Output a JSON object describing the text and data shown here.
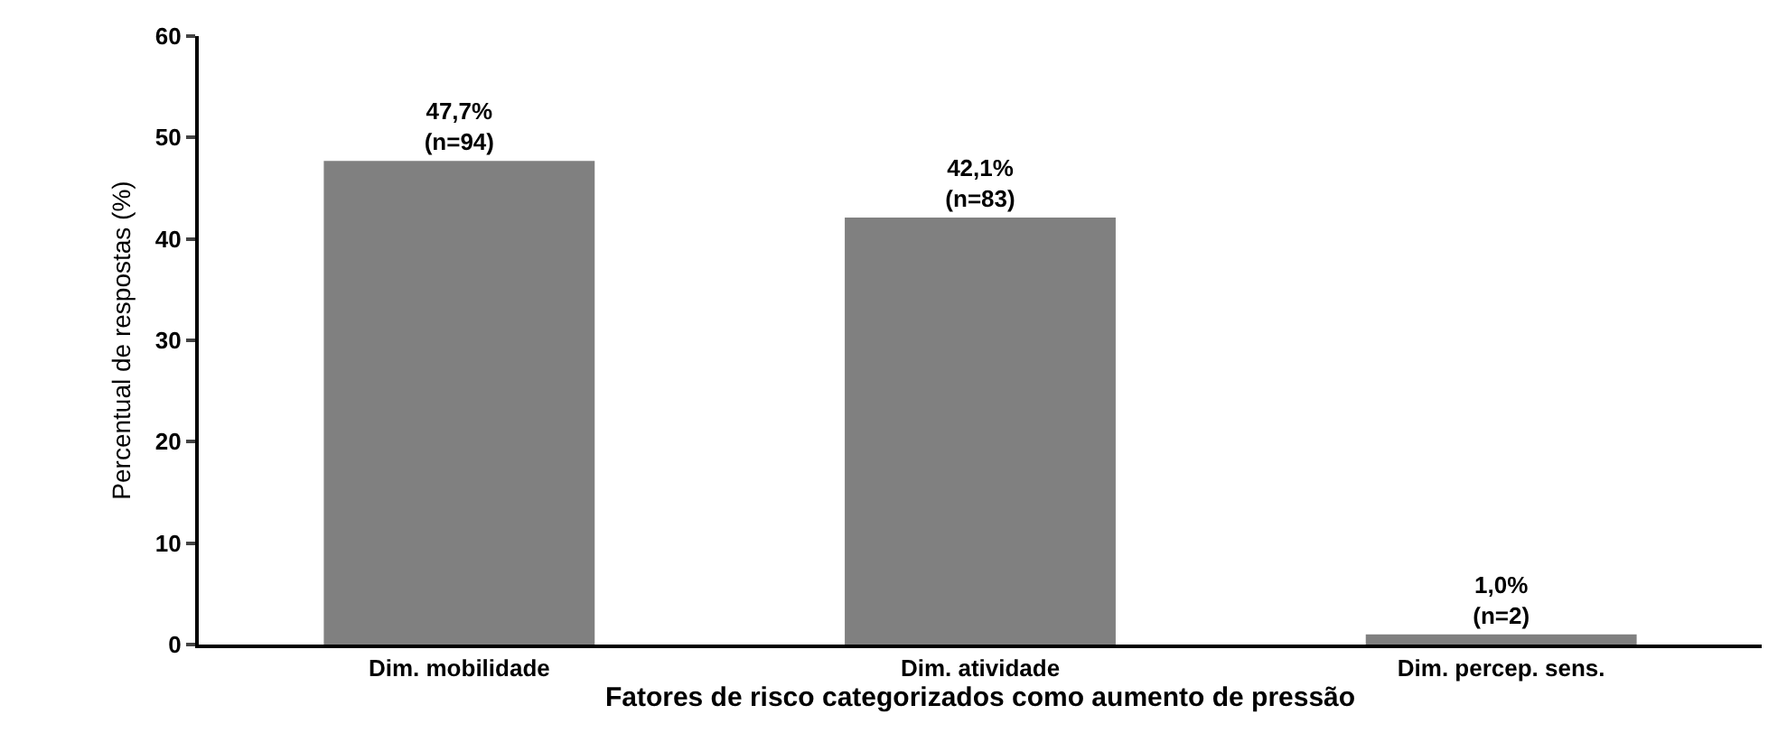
{
  "chart_data": {
    "type": "bar",
    "xlabel": "Fatores de risco categorizados como aumento de pressão",
    "ylabel": "Percentual de respostas (%)",
    "categories": [
      "Dim. mobilidade",
      "Dim. atividade",
      "Dim. percep. sens."
    ],
    "values": [
      47.7,
      42.1,
      1.0
    ],
    "color": "#808080",
    "value_labels": [
      "47,7%\n(n=94)",
      "42,1%\n(n=83)",
      "1,0%\n(n=2)"
    ],
    "ylim": [
      0,
      60
    ],
    "yticks": [
      0,
      10,
      20,
      30,
      40,
      50,
      60
    ]
  }
}
